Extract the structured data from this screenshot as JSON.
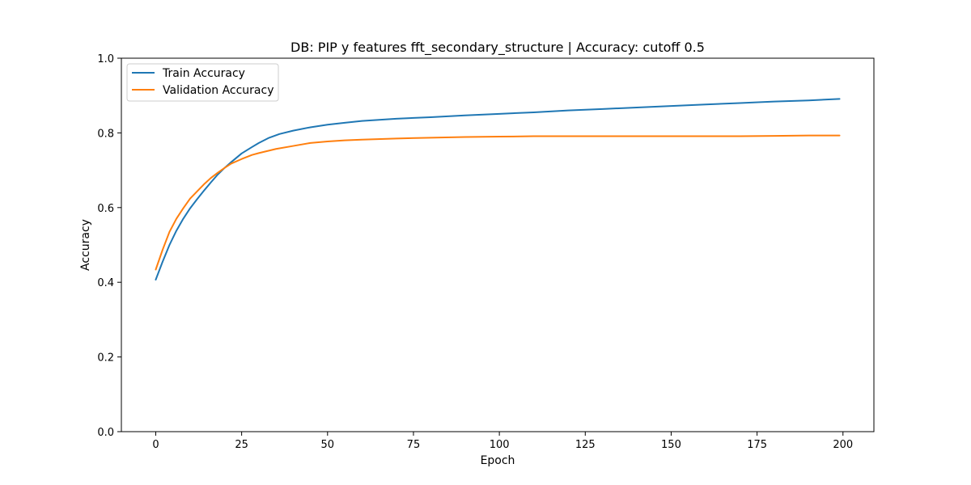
{
  "chart_data": {
    "type": "line",
    "title": "DB: PIP y features fft_secondary_structure | Accuracy: cutoff 0.5",
    "xlabel": "Epoch",
    "ylabel": "Accuracy",
    "xlim": [
      -10,
      209
    ],
    "ylim": [
      0,
      1
    ],
    "xticks": [
      0,
      25,
      50,
      75,
      100,
      125,
      150,
      175,
      200
    ],
    "xtick_labels": [
      "0",
      "25",
      "50",
      "75",
      "100",
      "125",
      "150",
      "175",
      "200"
    ],
    "yticks": [
      0,
      0.2,
      0.4,
      0.6,
      0.8,
      1.0
    ],
    "ytick_labels": [
      "0.0",
      "0.2",
      "0.4",
      "0.6",
      "0.8",
      "1.0"
    ],
    "grid": false,
    "legend_position": "upper-left",
    "series": [
      {
        "name": "Train Accuracy",
        "color": "#1f77b4",
        "points": [
          [
            0,
            0.407
          ],
          [
            2,
            0.455
          ],
          [
            4,
            0.5
          ],
          [
            6,
            0.538
          ],
          [
            8,
            0.57
          ],
          [
            10,
            0.598
          ],
          [
            12,
            0.622
          ],
          [
            14,
            0.645
          ],
          [
            16,
            0.667
          ],
          [
            18,
            0.688
          ],
          [
            20,
            0.706
          ],
          [
            22,
            0.722
          ],
          [
            25,
            0.745
          ],
          [
            28,
            0.762
          ],
          [
            30,
            0.773
          ],
          [
            33,
            0.787
          ],
          [
            36,
            0.797
          ],
          [
            40,
            0.806
          ],
          [
            45,
            0.815
          ],
          [
            50,
            0.822
          ],
          [
            55,
            0.827
          ],
          [
            60,
            0.832
          ],
          [
            70,
            0.838
          ],
          [
            80,
            0.842
          ],
          [
            90,
            0.847
          ],
          [
            100,
            0.851
          ],
          [
            110,
            0.855
          ],
          [
            120,
            0.86
          ],
          [
            130,
            0.864
          ],
          [
            140,
            0.868
          ],
          [
            150,
            0.872
          ],
          [
            160,
            0.876
          ],
          [
            170,
            0.88
          ],
          [
            180,
            0.884
          ],
          [
            190,
            0.887
          ],
          [
            199,
            0.891
          ]
        ]
      },
      {
        "name": "Validation Accuracy",
        "color": "#ff7f0e",
        "points": [
          [
            0,
            0.434
          ],
          [
            2,
            0.487
          ],
          [
            4,
            0.535
          ],
          [
            6,
            0.57
          ],
          [
            8,
            0.598
          ],
          [
            10,
            0.624
          ],
          [
            12,
            0.643
          ],
          [
            14,
            0.662
          ],
          [
            16,
            0.679
          ],
          [
            18,
            0.693
          ],
          [
            20,
            0.706
          ],
          [
            22,
            0.718
          ],
          [
            25,
            0.73
          ],
          [
            28,
            0.741
          ],
          [
            30,
            0.746
          ],
          [
            35,
            0.757
          ],
          [
            40,
            0.765
          ],
          [
            45,
            0.773
          ],
          [
            50,
            0.777
          ],
          [
            55,
            0.78
          ],
          [
            60,
            0.782
          ],
          [
            70,
            0.785
          ],
          [
            80,
            0.787
          ],
          [
            90,
            0.789
          ],
          [
            100,
            0.79
          ],
          [
            110,
            0.791
          ],
          [
            120,
            0.791
          ],
          [
            130,
            0.791
          ],
          [
            140,
            0.791
          ],
          [
            150,
            0.791
          ],
          [
            160,
            0.791
          ],
          [
            170,
            0.791
          ],
          [
            180,
            0.792
          ],
          [
            190,
            0.793
          ],
          [
            199,
            0.793
          ]
        ]
      }
    ]
  }
}
